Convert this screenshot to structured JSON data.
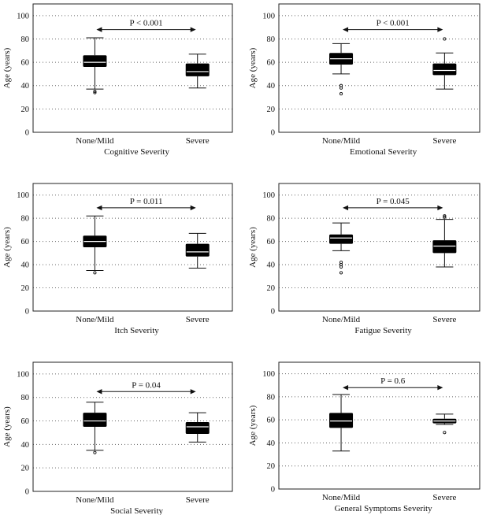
{
  "chart_data": [
    {
      "type": "box",
      "xlabel": "Cognitive Severity",
      "ylabel": "Age (years)",
      "ylim": [
        0,
        110
      ],
      "yticks": [
        0,
        20,
        40,
        60,
        80,
        100
      ],
      "grid": "horizontal dotted",
      "categories": [
        "None/Mild",
        "Severe"
      ],
      "boxes": [
        {
          "whisker_low": 37,
          "q1": 56,
          "median": 60,
          "q3": 66,
          "whisker_high": 81,
          "outliers": [
            34,
            35
          ]
        },
        {
          "whisker_low": 38,
          "q1": 48,
          "median": 52,
          "q3": 59,
          "whisker_high": 67,
          "outliers": []
        }
      ],
      "comparison": {
        "label": "P < 0.001",
        "y": 88
      }
    },
    {
      "type": "box",
      "xlabel": "Emotional Severity",
      "ylabel": "Age (years)",
      "ylim": [
        0,
        110
      ],
      "yticks": [
        0,
        20,
        40,
        60,
        80,
        100
      ],
      "grid": "horizontal dotted",
      "categories": [
        "None/Mild",
        "Severe"
      ],
      "boxes": [
        {
          "whisker_low": 50,
          "q1": 58,
          "median": 63,
          "q3": 68,
          "whisker_high": 76,
          "outliers": [
            33,
            38,
            40
          ]
        },
        {
          "whisker_low": 37,
          "q1": 49,
          "median": 53,
          "q3": 59,
          "whisker_high": 68,
          "outliers": [
            80
          ]
        }
      ],
      "comparison": {
        "label": "P < 0.001",
        "y": 88
      }
    },
    {
      "type": "box",
      "xlabel": "Itch Severity",
      "ylabel": "Age (years)",
      "ylim": [
        0,
        110
      ],
      "yticks": [
        0,
        20,
        40,
        60,
        80,
        100
      ],
      "grid": "horizontal dotted",
      "categories": [
        "None/Mild",
        "Severe"
      ],
      "boxes": [
        {
          "whisker_low": 35,
          "q1": 55,
          "median": 60,
          "q3": 65,
          "whisker_high": 82,
          "outliers": [
            33
          ]
        },
        {
          "whisker_low": 37,
          "q1": 47,
          "median": 51,
          "q3": 58,
          "whisker_high": 67,
          "outliers": []
        }
      ],
      "comparison": {
        "label": "P = 0.011",
        "y": 89
      }
    },
    {
      "type": "box",
      "xlabel": "Fatigue Severity",
      "ylabel": "Age (years)",
      "ylim": [
        0,
        110
      ],
      "yticks": [
        0,
        20,
        40,
        60,
        80,
        100
      ],
      "grid": "horizontal dotted",
      "categories": [
        "None/Mild",
        "Severe"
      ],
      "boxes": [
        {
          "whisker_low": 52,
          "q1": 58,
          "median": 63,
          "q3": 66,
          "whisker_high": 76,
          "outliers": [
            33,
            38,
            40,
            42
          ]
        },
        {
          "whisker_low": 38,
          "q1": 50,
          "median": 56,
          "q3": 61,
          "whisker_high": 79,
          "outliers": [
            81,
            82
          ]
        }
      ],
      "comparison": {
        "label": "P = 0.045",
        "y": 89
      }
    },
    {
      "type": "box",
      "xlabel": "Social Severity",
      "ylabel": "Age (years)",
      "ylim": [
        0,
        110
      ],
      "yticks": [
        0,
        20,
        40,
        60,
        80,
        100
      ],
      "grid": "horizontal dotted",
      "categories": [
        "None/Mild",
        "Severe"
      ],
      "boxes": [
        {
          "whisker_low": 35,
          "q1": 55,
          "median": 60,
          "q3": 67,
          "whisker_high": 76,
          "outliers": [
            33
          ]
        },
        {
          "whisker_low": 42,
          "q1": 49,
          "median": 55,
          "q3": 59,
          "whisker_high": 67,
          "outliers": []
        }
      ],
      "comparison": {
        "label": "P = 0.04",
        "y": 85
      }
    },
    {
      "type": "box",
      "xlabel": "General Symptoms Severity",
      "ylabel": "Age (years)",
      "ylim": [
        0,
        110
      ],
      "yticks": [
        0,
        20,
        40,
        60,
        80,
        100
      ],
      "grid": "horizontal dotted",
      "categories": [
        "None/Mild",
        "Severe"
      ],
      "boxes": [
        {
          "whisker_low": 33,
          "q1": 53,
          "median": 59,
          "q3": 66,
          "whisker_high": 82,
          "outliers": []
        },
        {
          "whisker_low": 56,
          "q1": 57,
          "median": 59,
          "q3": 61,
          "whisker_high": 65,
          "outliers": [
            49
          ]
        }
      ],
      "comparison": {
        "label": "P = 0.6",
        "y": 88
      }
    }
  ],
  "colors": {
    "box_fill": "#000000",
    "median_line": "#ffffff",
    "axis": "#222222",
    "grid": "#666666"
  }
}
